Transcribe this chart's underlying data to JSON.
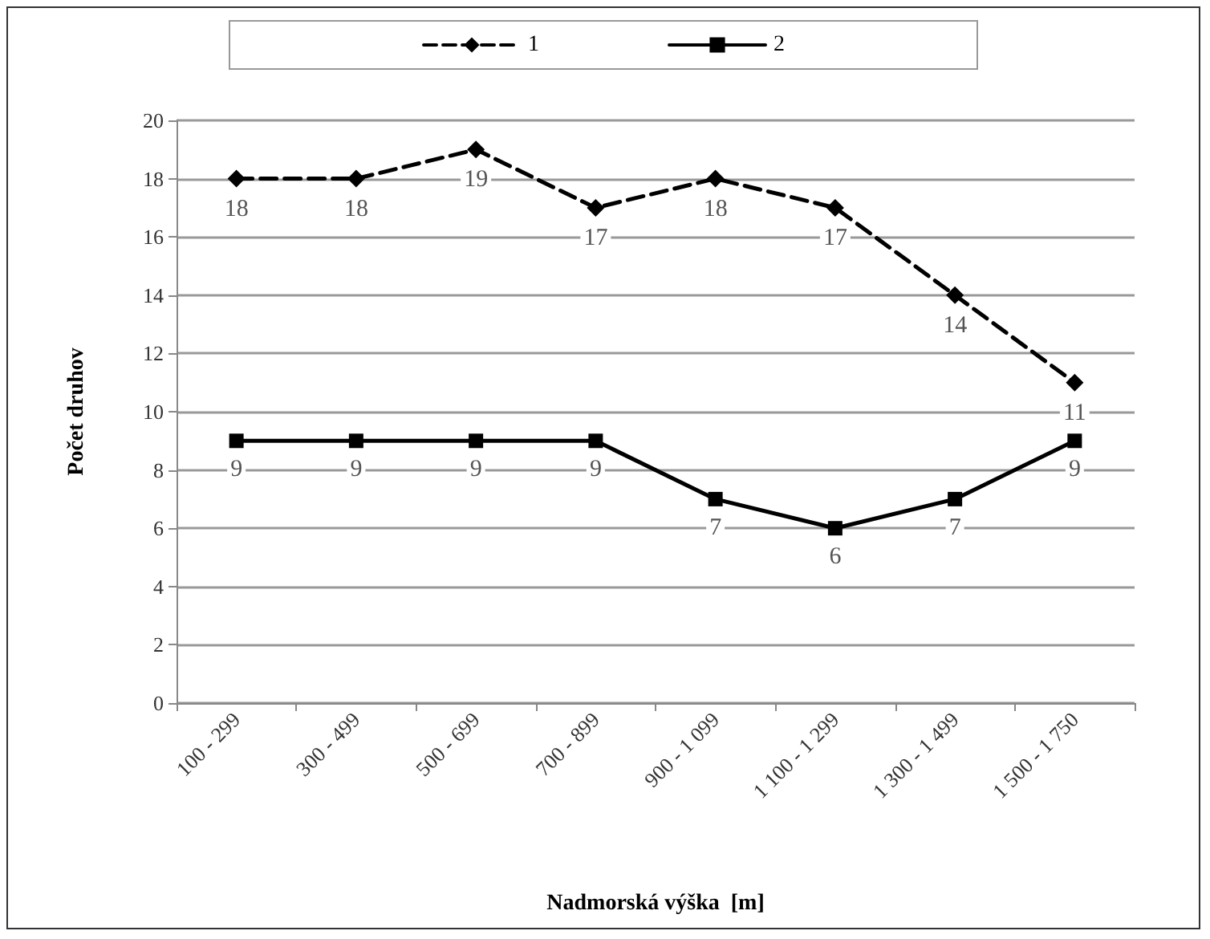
{
  "chart_data": {
    "type": "line",
    "xlabel": "Nadmorská výška  [m]",
    "ylabel": "Počet druhov",
    "categories": [
      "100 - 299",
      "300 - 499",
      "500 - 699",
      "700 - 899",
      "900 - 1 099",
      "1 100 - 1 299",
      "1 300 - 1 499",
      "1 500 - 1 750"
    ],
    "series": [
      {
        "name": "1",
        "color": "#000000",
        "values": [
          18,
          18,
          19,
          17,
          18,
          17,
          14,
          11
        ],
        "marker": "diamond",
        "line_style": "dashed"
      },
      {
        "name": "2",
        "color": "#000000",
        "values": [
          9,
          9,
          9,
          9,
          7,
          6,
          7,
          9
        ],
        "marker": "square",
        "line_style": "solid"
      }
    ],
    "ylim": [
      0,
      20
    ],
    "yticks": [
      0,
      2,
      4,
      6,
      8,
      10,
      12,
      14,
      16,
      18,
      20
    ],
    "grid": "y",
    "legend": "top",
    "data_labels": true
  }
}
